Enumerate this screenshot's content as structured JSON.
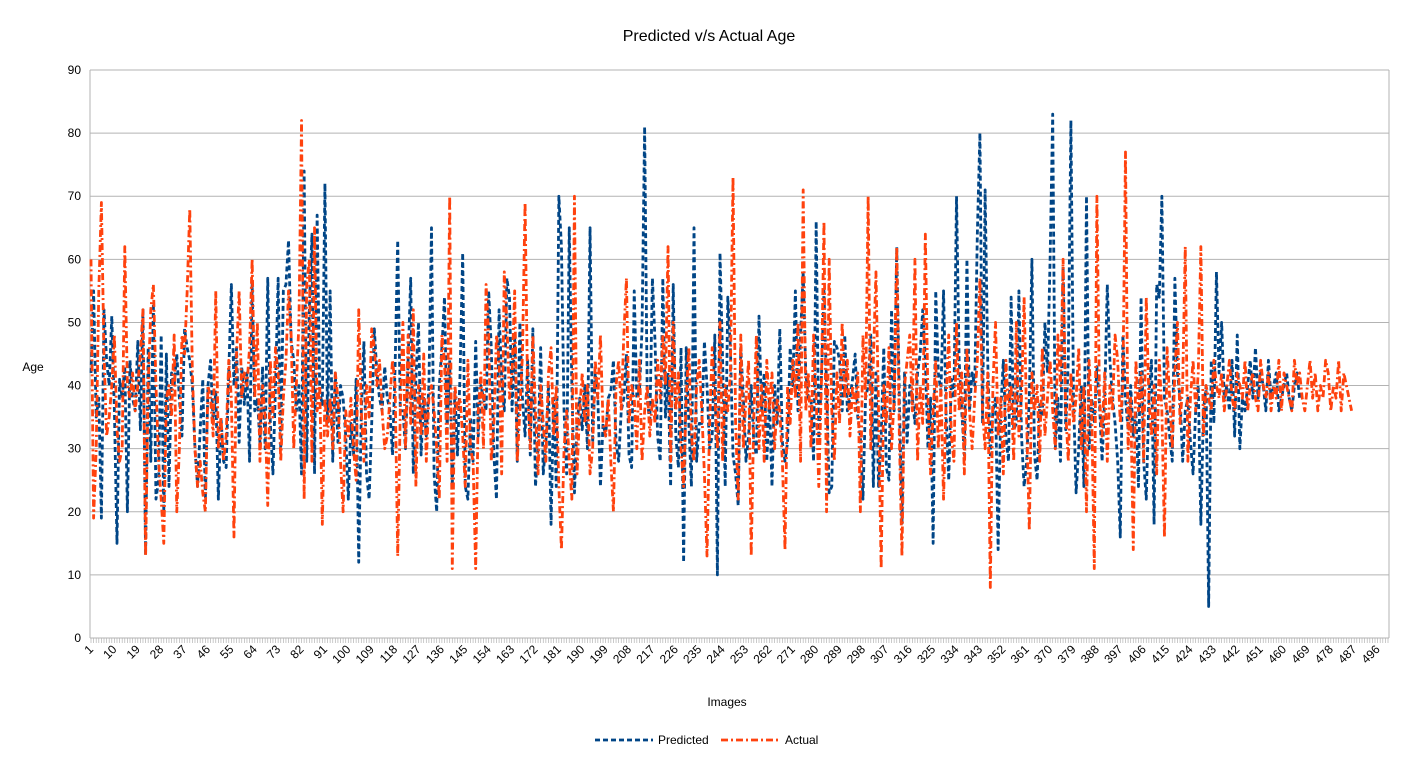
{
  "chart_data": {
    "type": "line",
    "title": "Predicted v/s Actual Age",
    "xlabel": "Images",
    "ylabel": "Age",
    "ylim": [
      0,
      90
    ],
    "yticks": [
      0,
      10,
      20,
      30,
      40,
      50,
      60,
      70,
      80,
      90
    ],
    "x_count": 500,
    "xtick_labels": [
      "1",
      "10",
      "19",
      "28",
      "37",
      "46",
      "55",
      "64",
      "73",
      "82",
      "91",
      "100",
      "109",
      "118",
      "127",
      "136",
      "145",
      "154",
      "163",
      "172",
      "181",
      "190",
      "199",
      "208",
      "217",
      "226",
      "235",
      "244",
      "253",
      "262",
      "271",
      "280",
      "289",
      "298",
      "307",
      "316",
      "325",
      "334",
      "343",
      "352",
      "361",
      "370",
      "379",
      "388",
      "397",
      "406",
      "415",
      "424",
      "433",
      "442",
      "451",
      "460",
      "469",
      "478",
      "487",
      "496"
    ],
    "grid": true,
    "legend": "bottom",
    "series": [
      {
        "name": "Predicted",
        "color": "#004586",
        "dash": "dashed",
        "values": [
          42,
          55,
          35,
          38,
          19,
          52,
          44,
          40,
          51,
          36,
          15,
          41,
          38,
          43,
          20,
          44,
          38,
          36,
          47,
          33,
          52,
          13,
          46,
          28,
          53,
          22,
          25,
          48,
          20,
          45,
          24,
          42,
          40,
          45,
          38,
          32,
          49,
          46,
          44,
          40,
          30,
          24,
          33,
          41,
          22,
          40,
          44,
          34,
          39,
          22,
          35,
          28,
          27,
          42,
          56,
          40,
          46,
          31,
          43,
          37,
          42,
          28,
          56,
          36,
          38,
          31,
          43,
          30,
          57,
          34,
          26,
          40,
          57,
          30,
          55,
          56,
          63,
          47,
          44,
          36,
          40,
          26,
          74,
          28,
          52,
          64,
          26,
          67,
          39,
          37,
          72,
          34,
          55,
          28,
          42,
          31,
          40,
          38,
          32,
          22,
          34,
          29,
          41,
          12,
          36,
          47,
          26,
          22,
          34,
          49,
          42,
          38,
          36,
          43,
          38,
          36,
          29,
          43,
          63,
          36,
          36,
          30,
          44,
          57,
          26,
          41,
          50,
          29,
          38,
          32,
          40,
          65,
          26,
          20,
          40,
          46,
          54,
          33,
          44,
          24,
          39,
          29,
          42,
          61,
          24,
          22,
          35,
          28,
          47,
          32,
          40,
          38,
          36,
          55,
          46,
          29,
          22,
          52,
          41,
          36,
          57,
          54,
          36,
          48,
          28,
          50,
          38,
          32,
          44,
          29,
          49,
          24,
          30,
          46,
          26,
          31,
          40,
          18,
          38,
          24,
          70,
          62,
          36,
          26,
          65,
          40,
          23,
          34,
          38,
          33,
          40,
          30,
          65,
          31,
          42,
          38,
          24,
          34,
          32,
          38,
          39,
          44,
          31,
          28,
          36,
          38,
          45,
          29,
          27,
          55,
          38,
          39,
          49,
          81,
          38,
          34,
          57,
          47,
          32,
          28,
          57,
          35,
          42,
          24,
          56,
          32,
          27,
          46,
          12,
          46,
          34,
          24,
          65,
          28,
          34,
          34,
          47,
          40,
          30,
          32,
          48,
          10,
          61,
          44,
          24,
          54,
          46,
          29,
          26,
          21,
          46,
          38,
          28,
          32,
          40,
          31,
          29,
          51,
          36,
          42,
          28,
          38,
          24,
          40,
          34,
          49,
          31,
          28,
          31,
          46,
          40,
          55,
          36,
          48,
          58,
          42,
          38,
          38,
          28,
          66,
          31,
          41,
          55,
          40,
          23,
          24,
          47,
          46,
          44,
          36,
          48,
          36,
          38,
          41,
          45,
          35,
          32,
          22,
          38,
          40,
          48,
          24,
          42,
          24,
          32,
          46,
          27,
          25,
          52,
          36,
          62,
          38,
          18,
          42,
          31,
          40,
          38,
          34,
          42,
          45,
          52,
          44,
          30,
          38,
          15,
          55,
          42,
          39,
          55,
          35,
          25,
          41,
          38,
          70,
          44,
          36,
          29,
          60,
          36,
          42,
          40,
          64,
          80,
          34,
          71,
          44,
          29,
          36,
          38,
          14,
          36,
          44,
          32,
          28,
          54,
          33,
          34,
          55,
          32,
          24,
          28,
          38,
          60,
          29,
          25,
          37,
          35,
          50,
          42,
          60,
          83,
          30,
          38,
          28,
          59,
          33,
          44,
          82,
          38,
          23,
          30,
          40,
          24,
          70,
          30,
          38,
          34,
          43,
          37,
          28,
          38,
          56,
          44,
          38,
          34,
          28,
          16,
          48,
          38,
          33,
          40,
          32,
          36,
          24,
          54,
          28,
          22,
          38,
          44,
          18,
          56,
          54,
          70,
          38,
          36,
          32,
          28,
          57,
          42,
          38,
          28,
          36,
          38,
          31,
          26,
          36,
          40,
          18,
          36,
          40,
          5,
          44,
          34,
          58,
          42,
          50,
          38,
          40,
          36,
          44,
          32,
          48,
          30,
          38,
          36,
          40,
          44,
          38,
          46,
          38,
          42,
          40,
          36,
          44,
          38,
          40,
          42,
          36,
          38,
          40,
          42,
          38,
          36,
          40,
          42,
          38
        ]
      },
      {
        "name": "Actual",
        "color": "#ff420e",
        "dash": "dashdot",
        "values": [
          60,
          19,
          30,
          55,
          69,
          45,
          32,
          35,
          40,
          48,
          33,
          28,
          30,
          62,
          40,
          38,
          42,
          36,
          40,
          45,
          52,
          13,
          40,
          52,
          56,
          40,
          28,
          22,
          15,
          38,
          40,
          35,
          48,
          20,
          30,
          48,
          45,
          55,
          68,
          42,
          30,
          24,
          28,
          23,
          20,
          40,
          38,
          32,
          55,
          30,
          35,
          28,
          32,
          44,
          38,
          16,
          45,
          55,
          38,
          42,
          40,
          46,
          60,
          38,
          50,
          28,
          40,
          35,
          21,
          44,
          35,
          46,
          42,
          28,
          38,
          44,
          55,
          48,
          30,
          40,
          50,
          82,
          22,
          56,
          60,
          28,
          65,
          36,
          40,
          18,
          38,
          32,
          38,
          30,
          42,
          38,
          28,
          20,
          36,
          32,
          38,
          30,
          25,
          52,
          36,
          28,
          40,
          35,
          49,
          46,
          40,
          44,
          36,
          30,
          32,
          38,
          44,
          40,
          13,
          36,
          50,
          30,
          48,
          34,
          52,
          24,
          40,
          32,
          45,
          28,
          38,
          40,
          36,
          30,
          22,
          48,
          44,
          28,
          70,
          11,
          40,
          36,
          38,
          32,
          24,
          44,
          30,
          28,
          11,
          36,
          42,
          30,
          56,
          48,
          28,
          34,
          48,
          44,
          26,
          58,
          50,
          38,
          42,
          55,
          28,
          36,
          45,
          69,
          38,
          30,
          48,
          36,
          26,
          40,
          34,
          28,
          42,
          46,
          32,
          40,
          24,
          14,
          30,
          36,
          28,
          22,
          70,
          26,
          36,
          42,
          34,
          40,
          26,
          30,
          44,
          38,
          48,
          34,
          32,
          38,
          28,
          20,
          40,
          44,
          36,
          48,
          57,
          34,
          40,
          38,
          30,
          44,
          28,
          36,
          40,
          32,
          38,
          34,
          44,
          38,
          48,
          40,
          62,
          28,
          50,
          36,
          42,
          30,
          24,
          38,
          46,
          32,
          28,
          40,
          44,
          36,
          26,
          13,
          34,
          46,
          38,
          30,
          50,
          28,
          40,
          36,
          42,
          73,
          34,
          22,
          48,
          30,
          38,
          44,
          13,
          35,
          48,
          30,
          40,
          28,
          44,
          36,
          42,
          30,
          38,
          36,
          28,
          14,
          40,
          34,
          44,
          38,
          50,
          28,
          71,
          36,
          42,
          30,
          48,
          38,
          24,
          40,
          66,
          20,
          60,
          36,
          28,
          42,
          34,
          50,
          38,
          44,
          32,
          40,
          36,
          42,
          20,
          48,
          38,
          70,
          30,
          44,
          58,
          36,
          11,
          40,
          34,
          46,
          30,
          38,
          62,
          32,
          13,
          40,
          44,
          48,
          36,
          60,
          28,
          40,
          34,
          64,
          38,
          26,
          36,
          44,
          30,
          40,
          22,
          38,
          48,
          32,
          28,
          50,
          36,
          42,
          26,
          46,
          36,
          30,
          38,
          44,
          57,
          36,
          30,
          42,
          8,
          40,
          50,
          32,
          38,
          26,
          44,
          36,
          40,
          28,
          50,
          32,
          38,
          54,
          34,
          17,
          42,
          36,
          40,
          28,
          46,
          32,
          38,
          44,
          36,
          30,
          48,
          40,
          60,
          36,
          28,
          42,
          34,
          38,
          46,
          30,
          40,
          20,
          44,
          36,
          11,
          70,
          38,
          32,
          42,
          28,
          40,
          36,
          48,
          44,
          34,
          40,
          77,
          30,
          38,
          14,
          44,
          36,
          42,
          28,
          54,
          38,
          32,
          40,
          26,
          44,
          36,
          16,
          46,
          38,
          30,
          42,
          50,
          34,
          40,
          62,
          28,
          38,
          44,
          36,
          42,
          62,
          32,
          40,
          38,
          36,
          44,
          40,
          38,
          42,
          36,
          40,
          44,
          38,
          36,
          42,
          40,
          38,
          44,
          36,
          40,
          42,
          38,
          36,
          44,
          40,
          38,
          42,
          36,
          40,
          38,
          44,
          36,
          42,
          40,
          38,
          36,
          44,
          40,
          42,
          38,
          36,
          40,
          44,
          38,
          42,
          36,
          40,
          38,
          44,
          42,
          36,
          40,
          38,
          44,
          36,
          42,
          40,
          38,
          36
        ]
      }
    ]
  }
}
